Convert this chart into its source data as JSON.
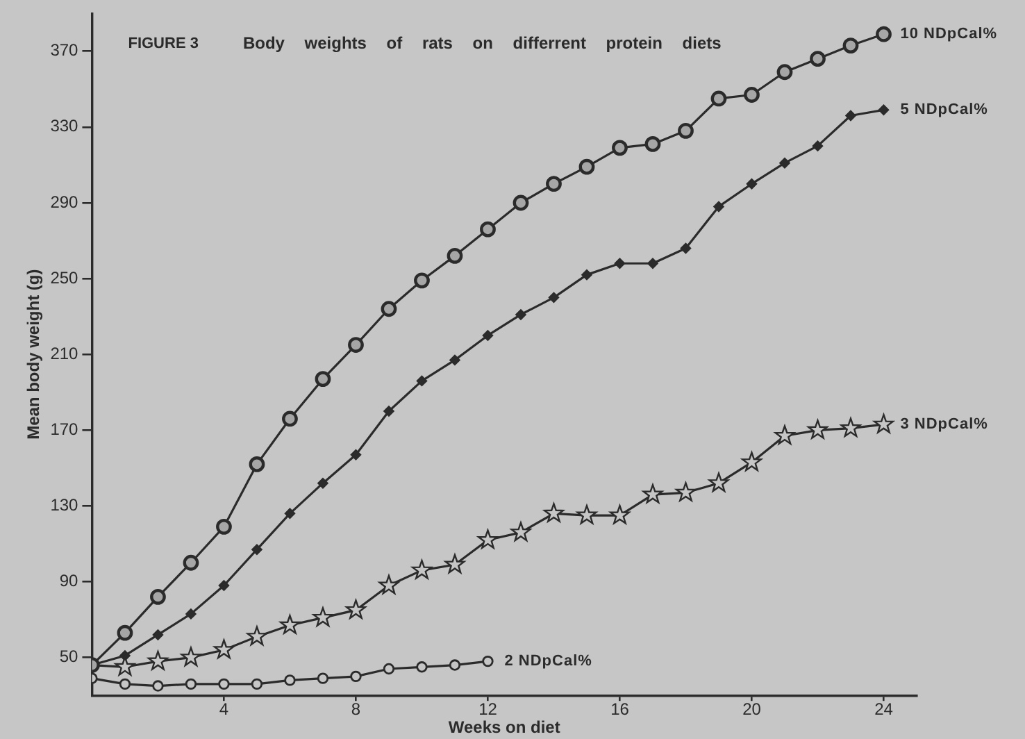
{
  "chart_data": {
    "type": "line",
    "title": "FIGURE 3",
    "subtitle": "Body weights of rats on differrent protein diets",
    "xlabel": "Weeks on diet",
    "ylabel": "Mean body weight (g)",
    "xlim": [
      0,
      25
    ],
    "xticks": [
      4,
      8,
      12,
      16,
      20,
      24
    ],
    "ylim": [
      30,
      390
    ],
    "yticks": [
      50,
      90,
      130,
      170,
      210,
      250,
      290,
      330,
      370
    ],
    "x": [
      0,
      1,
      2,
      3,
      4,
      5,
      6,
      7,
      8,
      9,
      10,
      11,
      12,
      13,
      14,
      15,
      16,
      17,
      18,
      19,
      20,
      21,
      22,
      23,
      24
    ],
    "series": [
      {
        "name": "10 NDpCal%",
        "color": "#2b2b2b",
        "marker": "circle",
        "values": [
          46,
          63,
          82,
          100,
          119,
          152,
          176,
          197,
          215,
          234,
          249,
          262,
          276,
          290,
          300,
          309,
          319,
          321,
          328,
          345,
          347,
          359,
          366,
          373,
          379
        ]
      },
      {
        "name": "5 NDpCal%",
        "color": "#2b2b2b",
        "marker": "diamond",
        "values": [
          46,
          51,
          62,
          73,
          88,
          107,
          126,
          142,
          157,
          180,
          196,
          207,
          220,
          231,
          240,
          252,
          258,
          258,
          266,
          288,
          300,
          311,
          320,
          336,
          339
        ]
      },
      {
        "name": "3 NDpCal%",
        "color": "#2b2b2b",
        "marker": "star",
        "values": [
          46,
          45,
          48,
          50,
          54,
          61,
          67,
          71,
          75,
          88,
          96,
          99,
          112,
          116,
          126,
          125,
          125,
          136,
          137,
          142,
          153,
          167,
          170,
          171,
          173
        ]
      },
      {
        "name": "2 NDpCal%",
        "color": "#2b2b2b",
        "marker": "circle",
        "x": [
          0,
          1,
          2,
          3,
          4,
          5,
          6,
          7,
          8,
          9,
          10,
          11,
          12
        ],
        "values": [
          39,
          36,
          35,
          36,
          36,
          36,
          38,
          39,
          40,
          44,
          45,
          46,
          48
        ]
      }
    ]
  }
}
